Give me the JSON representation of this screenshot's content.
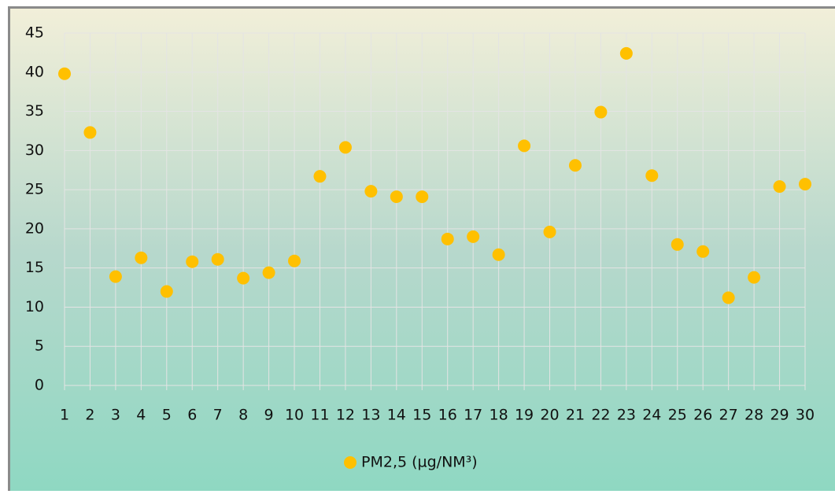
{
  "chart_data": {
    "type": "scatter",
    "x": [
      1,
      2,
      3,
      4,
      5,
      6,
      7,
      8,
      9,
      10,
      11,
      12,
      13,
      14,
      15,
      16,
      17,
      18,
      19,
      20,
      21,
      22,
      23,
      24,
      25,
      26,
      27,
      28,
      29,
      30
    ],
    "xlim": [
      1,
      30
    ],
    "xticks": [
      1,
      2,
      3,
      4,
      5,
      6,
      7,
      8,
      9,
      10,
      11,
      12,
      13,
      14,
      15,
      16,
      17,
      18,
      19,
      20,
      21,
      22,
      23,
      24,
      25,
      26,
      27,
      28,
      29,
      30
    ],
    "ylim": [
      0,
      45
    ],
    "yticks": [
      0,
      5,
      10,
      15,
      20,
      25,
      30,
      35,
      40,
      45
    ],
    "grid": true,
    "legend": "bottom",
    "series": [
      {
        "name": "PM2,5 (µg/NM³)",
        "color": "#ffc000",
        "values": [
          39.8,
          32.3,
          13.9,
          16.3,
          12.0,
          15.8,
          16.1,
          13.7,
          14.4,
          15.9,
          26.7,
          30.4,
          24.8,
          24.1,
          24.1,
          18.7,
          19.0,
          16.7,
          30.6,
          19.6,
          28.1,
          34.9,
          42.4,
          26.8,
          18.0,
          17.1,
          11.2,
          13.8,
          25.4,
          25.7
        ]
      }
    ]
  }
}
